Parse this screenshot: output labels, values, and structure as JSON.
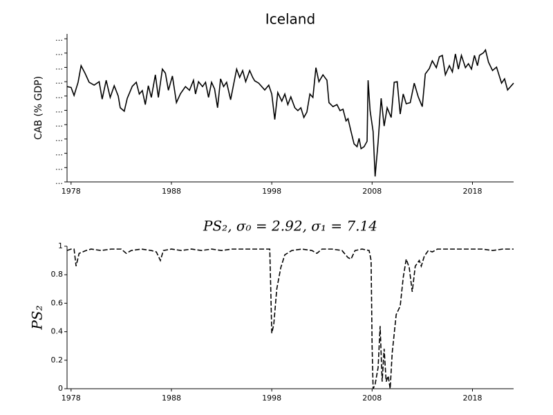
{
  "chart_data": [
    {
      "type": "line",
      "title": "Iceland",
      "y_label": "CAB (% GDP)",
      "xlim": [
        1977.6,
        2022.1
      ],
      "xticks": [
        1978,
        1988,
        1998,
        2008,
        2018
      ],
      "ylim": [
        -35,
        16.7
      ],
      "yticks": [
        {
          "value": -35,
          "label": "…"
        },
        {
          "value": -30,
          "label": "…"
        },
        {
          "value": -25,
          "label": "…"
        },
        {
          "value": -20,
          "label": "…"
        },
        {
          "value": -15,
          "label": "…"
        },
        {
          "value": -10,
          "label": "…"
        },
        {
          "value": -5,
          "label": "…"
        },
        {
          "value": 0,
          "label": "…"
        },
        {
          "value": 5,
          "label": "…"
        },
        {
          "value": 10,
          "label": "…"
        },
        {
          "value": 15,
          "label": "…"
        }
      ],
      "dashed": false,
      "color": "#000000",
      "x": [
        1977.6,
        1978.0,
        1978.3,
        1978.7,
        1979.0,
        1979.4,
        1979.8,
        1980.3,
        1980.8,
        1981.1,
        1981.5,
        1981.9,
        1982.3,
        1982.7,
        1982.9,
        1983.3,
        1983.6,
        1984.1,
        1984.5,
        1984.8,
        1985.1,
        1985.4,
        1985.7,
        1986.0,
        1986.4,
        1986.7,
        1987.1,
        1987.4,
        1987.7,
        1988.1,
        1988.5,
        1988.9,
        1989.4,
        1989.8,
        1990.2,
        1990.4,
        1990.7,
        1991.1,
        1991.4,
        1991.7,
        1992.0,
        1992.3,
        1992.6,
        1992.9,
        1993.2,
        1993.5,
        1993.9,
        1994.2,
        1994.5,
        1994.8,
        1995.1,
        1995.4,
        1995.8,
        1996.1,
        1996.3,
        1996.7,
        1997.3,
        1997.7,
        1998.0,
        1998.3,
        1998.6,
        1999.0,
        1999.3,
        1999.6,
        1999.9,
        2000.3,
        2000.6,
        2000.9,
        2001.2,
        2001.5,
        2001.8,
        2002.1,
        2002.4,
        2002.7,
        2003.1,
        2003.5,
        2003.7,
        2004.1,
        2004.5,
        2004.8,
        2005.1,
        2005.4,
        2005.6,
        2005.9,
        2006.2,
        2006.5,
        2006.7,
        2006.9,
        2007.2,
        2007.5,
        2007.6,
        2007.8,
        2008.1,
        2008.3,
        2008.6,
        2008.9,
        2009.2,
        2009.5,
        2009.9,
        2010.2,
        2010.5,
        2010.8,
        2011.1,
        2011.4,
        2011.8,
        2012.2,
        2012.6,
        2013.0,
        2013.3,
        2013.7,
        2014.0,
        2014.4,
        2014.7,
        2015.0,
        2015.3,
        2015.7,
        2016.0,
        2016.3,
        2016.6,
        2016.9,
        2017.3,
        2017.6,
        2017.9,
        2018.2,
        2018.5,
        2018.7,
        2019.1,
        2019.3,
        2019.6,
        2020.0,
        2020.4,
        2020.9,
        2021.2,
        2021.5,
        2022.1
      ],
      "values": [
        -1.7,
        -2.0,
        -4.8,
        -0.2,
        5.6,
        2.9,
        -0.2,
        -1.2,
        0.0,
        -6.1,
        0.5,
        -5.5,
        -1.4,
        -5.0,
        -9.1,
        -10.3,
        -5.8,
        -1.6,
        -0.2,
        -4.3,
        -3.1,
        -8.0,
        -1.4,
        -5.5,
        2.4,
        -5.5,
        4.4,
        3.0,
        -3.0,
        2.0,
        -7.3,
        -4.2,
        -1.7,
        -3.0,
        0.5,
        -4.3,
        0.0,
        -1.7,
        -0.2,
        -5.5,
        -0.2,
        -2.5,
        -9.1,
        1.0,
        -1.7,
        -0.2,
        -6.3,
        -0.9,
        4.4,
        1.5,
        3.9,
        0.0,
        3.9,
        1.5,
        0.3,
        -0.5,
        -2.9,
        -1.2,
        -4.3,
        -13.2,
        -3.8,
        -6.8,
        -4.3,
        -8.0,
        -5.3,
        -9.1,
        -10.1,
        -9.1,
        -12.5,
        -10.6,
        -4.3,
        -5.5,
        4.9,
        0.0,
        2.4,
        0.5,
        -7.3,
        -8.7,
        -8.0,
        -10.1,
        -9.6,
        -13.7,
        -12.9,
        -17.4,
        -21.7,
        -22.7,
        -19.8,
        -23.4,
        -22.7,
        -20.8,
        0.5,
        -10.1,
        -17.4,
        -33.1,
        -21.0,
        -5.8,
        -15.5,
        -9.1,
        -12.5,
        -0.2,
        0.0,
        -11.3,
        -4.3,
        -7.7,
        -7.3,
        -0.5,
        -5.3,
        -8.7,
        2.7,
        4.6,
        7.3,
        4.9,
        8.7,
        9.2,
        2.4,
        5.6,
        3.4,
        9.7,
        4.4,
        9.2,
        4.9,
        6.3,
        4.4,
        9.2,
        5.6,
        9.2,
        10.1,
        11.1,
        6.8,
        3.9,
        5.1,
        -0.5,
        1.0,
        -2.9,
        -0.5
      ]
    },
    {
      "type": "line",
      "title": "PS₂, σ₀ = 2.92, σ₁ = 7.14",
      "y_label": "PS₂",
      "xlim": [
        1977.6,
        2022.1
      ],
      "xticks": [
        1978,
        1988,
        1998,
        2008,
        2018
      ],
      "ylim": [
        0,
        1
      ],
      "yticks": [
        0,
        0.2,
        0.4,
        0.6,
        0.8,
        1
      ],
      "dashed": true,
      "color": "#000000",
      "x": [
        1977.6,
        1978.0,
        1978.3,
        1978.5,
        1978.8,
        1979.5,
        1980,
        1981,
        1982,
        1983,
        1983.5,
        1984,
        1985,
        1986,
        1986.5,
        1986.9,
        1987.2,
        1988,
        1989,
        1990,
        1991,
        1992,
        1993,
        1994,
        1995,
        1996,
        1997,
        1997.8,
        1997.9,
        1998.0,
        1998.2,
        1998.5,
        1998.9,
        1999.3,
        2000,
        2001,
        2002,
        2002.5,
        2003,
        2004,
        2005,
        2005.6,
        2005.9,
        2006.3,
        2007,
        2007.7,
        2007.9,
        2008.0,
        2008.1,
        2008.3,
        2008.6,
        2008.8,
        2009.0,
        2009.2,
        2009.4,
        2009.6,
        2009.8,
        2010.0,
        2010.4,
        2010.8,
        2011.1,
        2011.4,
        2011.7,
        2012.0,
        2012.3,
        2012.7,
        2012.9,
        2013.2,
        2013.6,
        2014,
        2014.5,
        2015,
        2016,
        2017,
        2018,
        2019,
        2020,
        2021,
        2022.1
      ],
      "values": [
        0.97,
        0.98,
        0.98,
        0.86,
        0.95,
        0.97,
        0.98,
        0.97,
        0.98,
        0.98,
        0.95,
        0.97,
        0.98,
        0.97,
        0.96,
        0.9,
        0.97,
        0.98,
        0.97,
        0.98,
        0.97,
        0.98,
        0.97,
        0.98,
        0.98,
        0.98,
        0.98,
        0.98,
        0.7,
        0.39,
        0.45,
        0.7,
        0.85,
        0.94,
        0.97,
        0.98,
        0.97,
        0.95,
        0.98,
        0.98,
        0.97,
        0.92,
        0.91,
        0.97,
        0.98,
        0.97,
        0.9,
        0.3,
        0.0,
        0.03,
        0.15,
        0.44,
        0.05,
        0.28,
        0.05,
        0.09,
        0.0,
        0.25,
        0.52,
        0.58,
        0.78,
        0.91,
        0.85,
        0.68,
        0.86,
        0.9,
        0.86,
        0.93,
        0.97,
        0.96,
        0.98,
        0.98,
        0.98,
        0.98,
        0.98,
        0.98,
        0.97,
        0.98,
        0.98
      ]
    }
  ]
}
